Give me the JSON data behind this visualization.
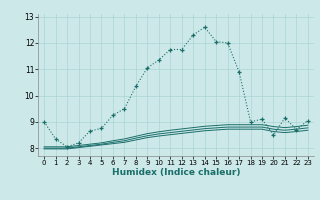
{
  "title": "13",
  "xlabel": "Humidex (Indice chaleur)",
  "background_color": "#cce8e8",
  "line_color": "#1a6e6a",
  "grid_color": "#aad4d4",
  "xlim": [
    -0.5,
    23.5
  ],
  "ylim": [
    7.7,
    13.1
  ],
  "yticks": [
    8,
    9,
    10,
    11,
    12
  ],
  "xticks": [
    0,
    1,
    2,
    3,
    4,
    5,
    6,
    7,
    8,
    9,
    10,
    11,
    12,
    13,
    14,
    15,
    16,
    17,
    18,
    19,
    20,
    21,
    22,
    23
  ],
  "main_y": [
    9.0,
    8.35,
    8.05,
    8.2,
    8.65,
    8.75,
    9.25,
    9.5,
    10.35,
    11.05,
    11.35,
    11.75,
    11.75,
    12.3,
    12.6,
    12.05,
    12.0,
    10.9,
    9.0,
    9.1,
    8.5,
    9.15,
    8.7,
    9.05
  ],
  "line2_y": [
    8.05,
    8.05,
    8.05,
    8.1,
    8.15,
    8.2,
    8.28,
    8.35,
    8.45,
    8.55,
    8.62,
    8.68,
    8.73,
    8.78,
    8.83,
    8.86,
    8.89,
    8.89,
    8.89,
    8.89,
    8.82,
    8.78,
    8.82,
    8.87
  ],
  "line3_y": [
    8.0,
    8.0,
    8.0,
    8.05,
    8.1,
    8.15,
    8.22,
    8.28,
    8.38,
    8.47,
    8.54,
    8.59,
    8.64,
    8.69,
    8.74,
    8.77,
    8.8,
    8.8,
    8.8,
    8.8,
    8.72,
    8.68,
    8.72,
    8.77
  ],
  "line4_y": [
    7.97,
    7.97,
    7.97,
    8.02,
    8.07,
    8.12,
    8.17,
    8.22,
    8.31,
    8.4,
    8.46,
    8.51,
    8.56,
    8.61,
    8.66,
    8.69,
    8.72,
    8.72,
    8.72,
    8.72,
    8.63,
    8.59,
    8.63,
    8.68
  ]
}
